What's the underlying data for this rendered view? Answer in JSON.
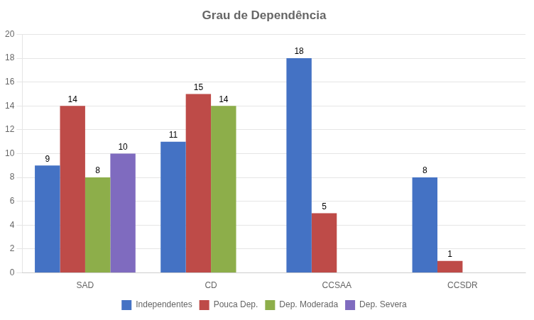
{
  "chart_data": {
    "type": "bar",
    "title": "Grau de Dependência",
    "categories": [
      "SAD",
      "CD",
      "CCSAA",
      "CCSDR"
    ],
    "series": [
      {
        "name": "Independentes",
        "color": "#4472C4",
        "values": [
          9,
          11,
          18,
          8
        ],
        "value_labels": [
          "9",
          "11",
          "18",
          "8"
        ]
      },
      {
        "name": "Pouca Dep.",
        "color": "#BE4B48",
        "values": [
          14,
          15,
          5,
          1
        ],
        "value_labels": [
          "14",
          "15",
          "5",
          "1"
        ]
      },
      {
        "name": "Dep. Moderada",
        "color": "#8DAE4A",
        "values": [
          8,
          14,
          0,
          0
        ],
        "value_labels": [
          "8",
          "14",
          null,
          null
        ]
      },
      {
        "name": "Dep. Severa",
        "color": "#7F6BBF",
        "values": [
          10,
          0,
          0,
          0
        ],
        "value_labels": [
          "10",
          null,
          null,
          null
        ]
      }
    ],
    "ylim": [
      0,
      20
    ],
    "yticks": [
      0,
      2,
      4,
      6,
      8,
      10,
      12,
      14,
      16,
      18,
      20
    ],
    "grid": true,
    "legend": "bottom",
    "data_labels": true
  }
}
